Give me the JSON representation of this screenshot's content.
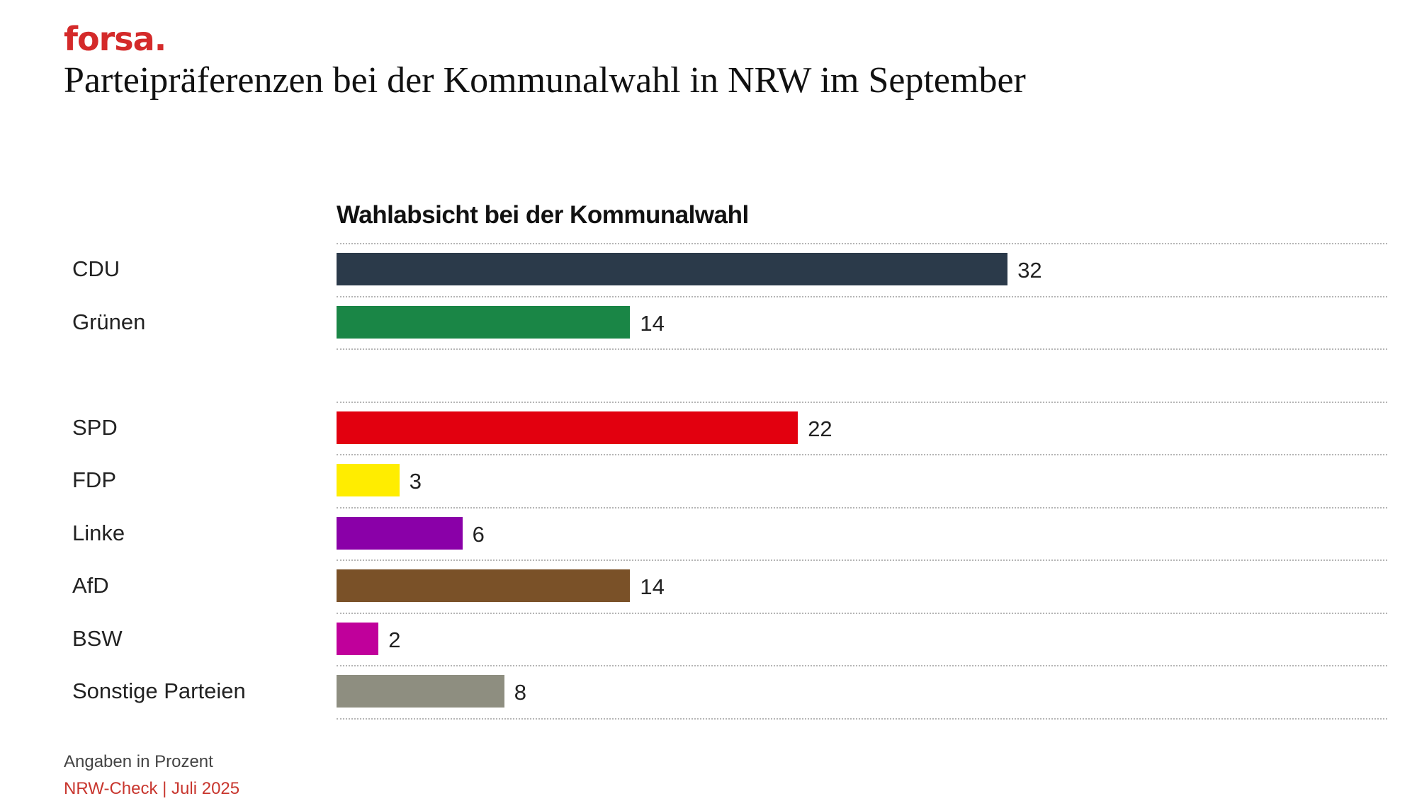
{
  "brand": "forsa.",
  "title": "Parteipräferenzen bei der Kommunalwahl in NRW im September",
  "footer": {
    "note": "Angaben in Prozent",
    "source": "NRW-Check | Juli 2025"
  },
  "chart_data": {
    "type": "bar",
    "orientation": "horizontal",
    "title": "Wahlabsicht bei der Kommunalwahl",
    "unit": "Prozent",
    "categories": [
      "CDU",
      "Grünen",
      "",
      "SPD",
      "FDP",
      "Linke",
      "AfD",
      "BSW",
      "Sonstige Parteien"
    ],
    "values": [
      32,
      14,
      null,
      22,
      3,
      6,
      14,
      2,
      8
    ],
    "colors": [
      "#2b3a4a",
      "#1a8646",
      null,
      "#e2000f",
      "#ffed00",
      "#8a00a8",
      "#7a5128",
      "#c0009b",
      "#8e8e80"
    ],
    "xlim": [
      0,
      50
    ],
    "grid": "dotted row separators"
  }
}
